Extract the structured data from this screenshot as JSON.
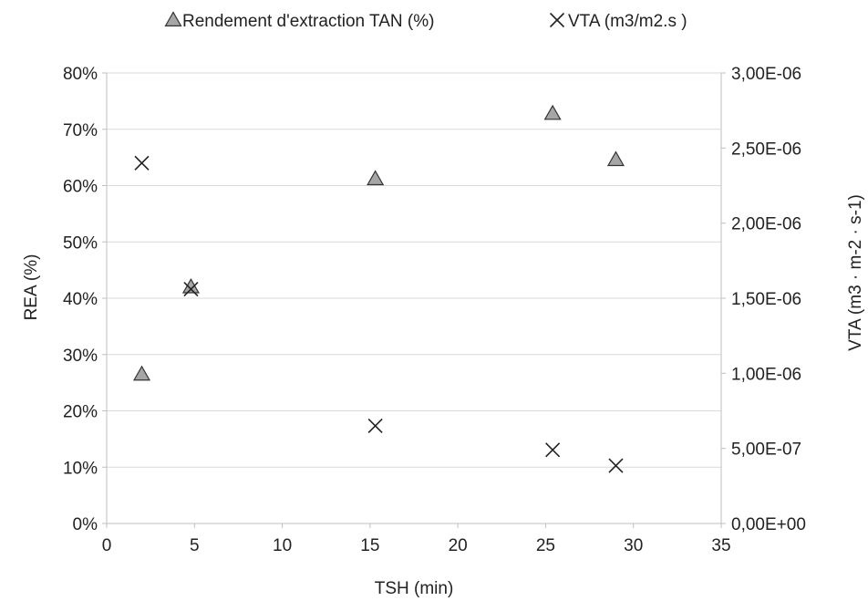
{
  "chart_data": {
    "type": "scatter",
    "title": "",
    "xlabel": "TSH (min)",
    "ylabel": "REA (%)",
    "y2label": "VTA (m3 · m-2 · s-1)",
    "xlim": [
      0,
      35
    ],
    "ylim": [
      0,
      0.8
    ],
    "y2lim": [
      0,
      3e-06
    ],
    "x_ticks": [
      "0",
      "5",
      "10",
      "15",
      "20",
      "25",
      "30",
      "35"
    ],
    "y_ticks": [
      "0%",
      "10%",
      "20%",
      "30%",
      "40%",
      "50%",
      "60%",
      "70%",
      "80%"
    ],
    "y2_ticks": [
      "0,00E+00",
      "5,00E-07",
      "1,00E-06",
      "1,50E-06",
      "2,00E-06",
      "2,50E-06",
      "3,00E-06"
    ],
    "grid": "horizontal",
    "legend_position": "top",
    "series": [
      {
        "name": "Rendement d'extraction TAN (%)",
        "axis": "left",
        "marker": "triangle",
        "color": "#a6a6a6",
        "x": [
          2.0,
          4.8,
          15.3,
          25.4,
          29.0
        ],
        "y": [
          0.265,
          0.42,
          0.612,
          0.728,
          0.646
        ]
      },
      {
        "name": "VTA (m3/m2.s )",
        "axis": "right",
        "marker": "x",
        "color": "#222222",
        "x": [
          2.0,
          4.8,
          15.3,
          25.4,
          29.0
        ],
        "y": [
          2.4e-06,
          1.56e-06,
          6.5e-07,
          4.9e-07,
          3.85e-07
        ]
      }
    ]
  }
}
